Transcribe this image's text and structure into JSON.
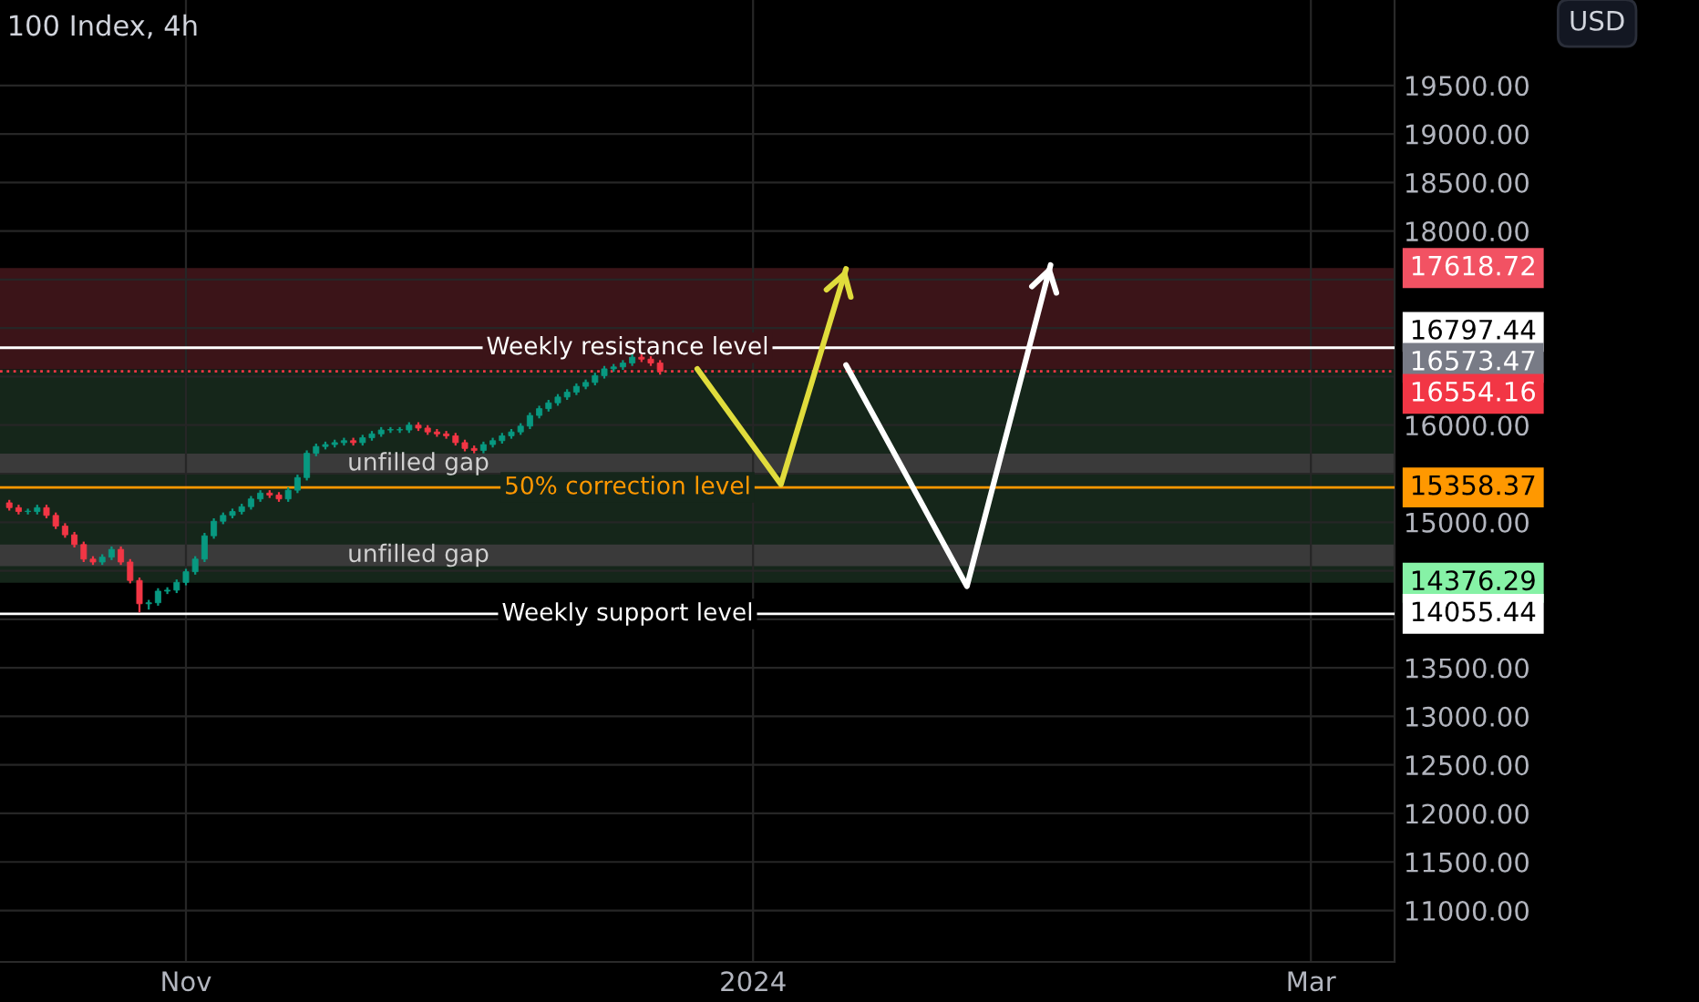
{
  "chart_data": {
    "type": "candlestick",
    "title": "100 Index, 4h",
    "annotations": [
      "USD",
      "17618.72",
      "16797.44",
      "16573.47",
      "16554.16",
      "15358.37",
      "14376.29",
      "14055.44"
    ],
    "x": [
      "2023-10-13",
      "2023-10-14",
      "2023-10-15",
      "2023-10-16",
      "2023-10-17",
      "2023-10-18",
      "2023-10-19",
      "2023-10-20",
      "2023-10-21",
      "2023-10-22",
      "2023-10-23",
      "2023-10-24",
      "2023-10-25",
      "2023-10-26",
      "2023-10-27",
      "2023-10-28",
      "2023-10-29",
      "2023-10-30",
      "2023-10-31",
      "2023-11-01",
      "2023-11-02",
      "2023-11-03",
      "2023-11-04",
      "2023-11-05",
      "2023-11-06",
      "2023-11-07",
      "2023-11-08",
      "2023-11-09",
      "2023-11-10",
      "2023-11-11",
      "2023-11-12",
      "2023-11-13",
      "2023-11-14",
      "2023-11-15",
      "2023-11-16",
      "2023-11-17",
      "2023-11-18",
      "2023-11-19",
      "2023-11-20",
      "2023-11-21",
      "2023-11-22",
      "2023-11-23",
      "2023-11-24",
      "2023-11-25",
      "2023-11-26",
      "2023-11-27",
      "2023-11-28",
      "2023-11-29",
      "2023-11-30",
      "2023-12-01",
      "2023-12-02",
      "2023-12-03",
      "2023-12-04",
      "2023-12-05",
      "2023-12-06",
      "2023-12-07",
      "2023-12-08",
      "2023-12-09",
      "2023-12-10",
      "2023-12-11",
      "2023-12-12",
      "2023-12-13",
      "2023-12-14",
      "2023-12-15",
      "2023-12-16",
      "2023-12-17",
      "2023-12-18",
      "2023-12-19",
      "2023-12-20",
      "2023-12-21",
      "2023-12-22"
    ],
    "ohlc": [
      [
        15200,
        15230,
        15120,
        15150
      ],
      [
        15150,
        15180,
        15080,
        15110
      ],
      [
        15110,
        15140,
        15080,
        15110
      ],
      [
        15110,
        15180,
        15080,
        15150
      ],
      [
        15150,
        15180,
        15040,
        15070
      ],
      [
        15070,
        15100,
        14930,
        14960
      ],
      [
        14960,
        14990,
        14840,
        14870
      ],
      [
        14870,
        14900,
        14740,
        14770
      ],
      [
        14770,
        14800,
        14590,
        14620
      ],
      [
        14620,
        14650,
        14560,
        14590
      ],
      [
        14590,
        14670,
        14560,
        14640
      ],
      [
        14640,
        14750,
        14610,
        14720
      ],
      [
        14720,
        14750,
        14560,
        14590
      ],
      [
        14590,
        14620,
        14370,
        14400
      ],
      [
        14400,
        14430,
        14070,
        14160
      ],
      [
        14160,
        14200,
        14100,
        14170
      ],
      [
        14170,
        14320,
        14140,
        14290
      ],
      [
        14290,
        14330,
        14260,
        14300
      ],
      [
        14300,
        14410,
        14270,
        14380
      ],
      [
        14380,
        14520,
        14350,
        14490
      ],
      [
        14490,
        14650,
        14460,
        14620
      ],
      [
        14620,
        14890,
        14590,
        14860
      ],
      [
        14860,
        15040,
        14830,
        15010
      ],
      [
        15010,
        15100,
        14980,
        15070
      ],
      [
        15070,
        15140,
        15040,
        15110
      ],
      [
        15110,
        15190,
        15080,
        15160
      ],
      [
        15160,
        15270,
        15130,
        15240
      ],
      [
        15240,
        15330,
        15210,
        15300
      ],
      [
        15300,
        15330,
        15250,
        15280
      ],
      [
        15280,
        15310,
        15210,
        15240
      ],
      [
        15240,
        15360,
        15210,
        15330
      ],
      [
        15330,
        15490,
        15300,
        15460
      ],
      [
        15460,
        15740,
        15430,
        15710
      ],
      [
        15710,
        15810,
        15680,
        15780
      ],
      [
        15780,
        15830,
        15750,
        15800
      ],
      [
        15800,
        15850,
        15770,
        15820
      ],
      [
        15820,
        15870,
        15790,
        15840
      ],
      [
        15840,
        15870,
        15790,
        15820
      ],
      [
        15820,
        15900,
        15790,
        15870
      ],
      [
        15870,
        15940,
        15840,
        15910
      ],
      [
        15910,
        15980,
        15880,
        15950
      ],
      [
        15950,
        15980,
        15920,
        15950
      ],
      [
        15950,
        15980,
        15920,
        15950
      ],
      [
        15950,
        16030,
        15920,
        16000
      ],
      [
        16000,
        16030,
        15940,
        15970
      ],
      [
        15970,
        16000,
        15900,
        15930
      ],
      [
        15930,
        15960,
        15880,
        15910
      ],
      [
        15910,
        15940,
        15860,
        15890
      ],
      [
        15890,
        15920,
        15790,
        15820
      ],
      [
        15820,
        15850,
        15730,
        15760
      ],
      [
        15760,
        15790,
        15710,
        15740
      ],
      [
        15740,
        15830,
        15710,
        15800
      ],
      [
        15800,
        15870,
        15770,
        15840
      ],
      [
        15840,
        15920,
        15810,
        15890
      ],
      [
        15890,
        15960,
        15860,
        15930
      ],
      [
        15930,
        16020,
        15900,
        15990
      ],
      [
        15990,
        16130,
        15960,
        16100
      ],
      [
        16100,
        16200,
        16070,
        16170
      ],
      [
        16170,
        16260,
        16140,
        16230
      ],
      [
        16230,
        16320,
        16200,
        16290
      ],
      [
        16290,
        16370,
        16260,
        16340
      ],
      [
        16340,
        16430,
        16310,
        16400
      ],
      [
        16400,
        16470,
        16370,
        16440
      ],
      [
        16440,
        16540,
        16410,
        16510
      ],
      [
        16510,
        16610,
        16480,
        16580
      ],
      [
        16580,
        16630,
        16550,
        16600
      ],
      [
        16600,
        16670,
        16570,
        16640
      ],
      [
        16640,
        16730,
        16610,
        16700
      ],
      [
        16700,
        16730,
        16650,
        16680
      ],
      [
        16680,
        16710,
        16610,
        16640
      ],
      [
        16640,
        16670,
        16520,
        16554.16
      ]
    ],
    "colors": [
      "#f23645",
      "#f23645",
      "#089981",
      "#089981",
      "#f23645",
      "#f23645",
      "#f23645",
      "#f23645",
      "#f23645",
      "#f23645",
      "#089981",
      "#089981",
      "#f23645",
      "#f23645",
      "#f23645",
      "#089981",
      "#089981",
      "#089981",
      "#089981",
      "#089981",
      "#089981",
      "#089981",
      "#089981",
      "#089981",
      "#089981",
      "#089981",
      "#089981",
      "#089981",
      "#f23645",
      "#f23645",
      "#089981",
      "#089981",
      "#089981",
      "#089981",
      "#089981",
      "#089981",
      "#089981",
      "#f23645",
      "#089981",
      "#089981",
      "#089981",
      "#089981",
      "#089981",
      "#089981",
      "#f23645",
      "#f23645",
      "#f23645",
      "#f23645",
      "#f23645",
      "#f23645",
      "#f23645",
      "#089981",
      "#089981",
      "#089981",
      "#089981",
      "#089981",
      "#089981",
      "#089981",
      "#089981",
      "#089981",
      "#089981",
      "#089981",
      "#089981",
      "#089981",
      "#089981",
      "#089981",
      "#089981",
      "#089981",
      "#f23645",
      "#f23645",
      "#f23645"
    ],
    "series": [
      {
        "type": "line",
        "color": "#e0dc3c",
        "x": [
          "2023-12-26",
          "2024-01-04",
          "2024-01-11"
        ],
        "values": [
          16580,
          15390,
          17610
        ]
      },
      {
        "type": "line",
        "color": "#ffffff",
        "x": [
          "2024-01-11",
          "2024-01-24",
          "2024-02-02"
        ],
        "values": [
          16620,
          14340,
          17650
        ]
      }
    ],
    "ref_lines": [
      {
        "axis": "y",
        "value": 16797.44,
        "label": "Weekly resistance level",
        "color": "#ffffff",
        "line_style": "solid"
      },
      {
        "axis": "y",
        "value": 16554.16,
        "label": null,
        "color": "#f23645",
        "line_style": "dotted"
      },
      {
        "axis": "y",
        "value": 15358.37,
        "label": "50% correction level",
        "color": "#ff9800",
        "line_style": "solid"
      },
      {
        "axis": "y",
        "value": 14055.44,
        "label": "Weekly support level",
        "color": "#ffffff",
        "line_style": "solid"
      }
    ],
    "bands": [
      {
        "axis": "y",
        "from": 16573.47,
        "to": 17618.72,
        "label": null,
        "color": "#3b1418"
      },
      {
        "axis": "y",
        "from": 14376.29,
        "to": 16573.47,
        "label": null,
        "color": "#15261a"
      },
      {
        "axis": "y",
        "from": 15500,
        "to": 15706,
        "label": "unfilled gap",
        "color": "#3a3a3a"
      },
      {
        "axis": "y",
        "from": 14548,
        "to": 14771,
        "label": "unfilled gap",
        "color": "#3a3a3a"
      }
    ],
    "xlim": [
      "2023-10-12",
      "2024-03-10"
    ],
    "xticks": [
      {
        "value": "2023-11-01",
        "label": "Nov"
      },
      {
        "value": "2024-01-01",
        "label": "2024"
      },
      {
        "value": "2024-03-01",
        "label": "Mar"
      }
    ],
    "ylim": [
      10470,
      20380
    ],
    "yticks": [
      {
        "value": 11000,
        "label": "11000.00"
      },
      {
        "value": 11500,
        "label": "11500.00"
      },
      {
        "value": 12000,
        "label": "12000.00"
      },
      {
        "value": 12500,
        "label": "12500.00"
      },
      {
        "value": 13000,
        "label": "13000.00"
      },
      {
        "value": 13500,
        "label": "13500.00"
      },
      {
        "value": 14000,
        "label": null
      },
      {
        "value": 14500,
        "label": null
      },
      {
        "value": 15000,
        "label": "15000.00"
      },
      {
        "value": 15500,
        "label": null
      },
      {
        "value": 16000,
        "label": "16000.00"
      },
      {
        "value": 16500,
        "label": null
      },
      {
        "value": 17000,
        "label": null
      },
      {
        "value": 17500,
        "label": null
      },
      {
        "value": 18000,
        "label": "18000.00"
      },
      {
        "value": 18500,
        "label": "18500.00"
      },
      {
        "value": 19000,
        "label": "19000.00"
      },
      {
        "value": 19500,
        "label": "19500.00"
      }
    ],
    "grid": true
  }
}
